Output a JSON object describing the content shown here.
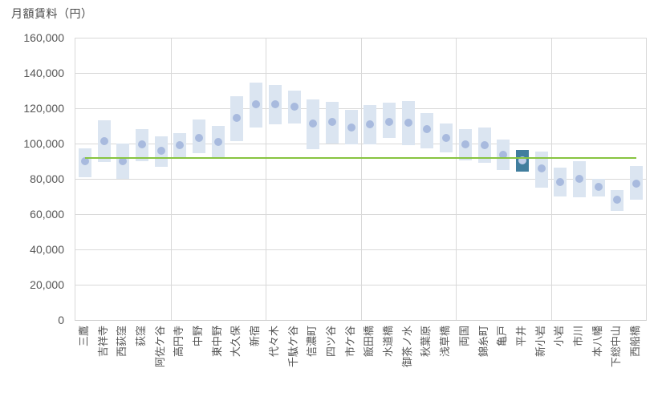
{
  "title": "月額賃料（円）",
  "colors": {
    "range_bar": "#dbe5f1",
    "range_bar_highlight": "#417e9e",
    "dot": "#a8bade",
    "dot_highlight": "#c0cde9",
    "reference_line": "#87c440",
    "gridline": "#d9d9d9",
    "axis_text": "#555555"
  },
  "chart_data": {
    "type": "bar",
    "subtype": "floating-range-with-median-dot",
    "title": "月額賃料（円）",
    "xlabel": "",
    "ylabel": "月額賃料（円）",
    "ylim": [
      0,
      160000
    ],
    "yticks": [
      0,
      20000,
      40000,
      60000,
      80000,
      100000,
      120000,
      140000,
      160000
    ],
    "ytick_labels": [
      "0",
      "20,000",
      "40,000",
      "60,000",
      "80,000",
      "100,000",
      "120,000",
      "140,000",
      "160,000"
    ],
    "x_major_gridline_every": 5,
    "grid": true,
    "legend": false,
    "categories": [
      "三鷹",
      "吉祥寺",
      "西荻窪",
      "荻窪",
      "阿佐ケ谷",
      "高円寺",
      "中野",
      "東中野",
      "大久保",
      "新宿",
      "代々木",
      "千駄ケ谷",
      "信濃町",
      "四ツ谷",
      "市ケ谷",
      "飯田橋",
      "水道橋",
      "御茶ノ水",
      "秋葉原",
      "浅草橋",
      "両国",
      "錦糸町",
      "亀戸",
      "平井",
      "新小岩",
      "小岩",
      "市川",
      "本八幡",
      "下総中山",
      "西船橋"
    ],
    "series": [
      {
        "name": "range_low",
        "values": [
          81000,
          89500,
          80000,
          90000,
          87000,
          91500,
          94500,
          92000,
          101500,
          109000,
          111000,
          111500,
          97000,
          100000,
          99500,
          99500,
          103000,
          99000,
          97500,
          95000,
          90500,
          89000,
          85000,
          84000,
          75000,
          70000,
          69500,
          70000,
          62000,
          68000
        ]
      },
      {
        "name": "range_high",
        "values": [
          97500,
          113000,
          100000,
          108000,
          104000,
          106000,
          113500,
          110000,
          127000,
          134500,
          133000,
          130000,
          125000,
          123500,
          119000,
          122000,
          123000,
          124000,
          117500,
          111500,
          108000,
          109000,
          102500,
          96500,
          95500,
          86500,
          90000,
          80000,
          73500,
          87500
        ]
      },
      {
        "name": "median_dot",
        "values": [
          90000,
          101500,
          90000,
          99500,
          96000,
          99000,
          103000,
          101000,
          114500,
          122500,
          122500,
          121000,
          111500,
          112500,
          109000,
          111000,
          112500,
          112000,
          108000,
          103000,
          99500,
          99000,
          93500,
          90500,
          86000,
          78000,
          80000,
          75500,
          68000,
          77500
        ]
      }
    ],
    "highlight": {
      "category": "平井",
      "index": 23
    },
    "reference_line": {
      "value": 92000
    }
  }
}
